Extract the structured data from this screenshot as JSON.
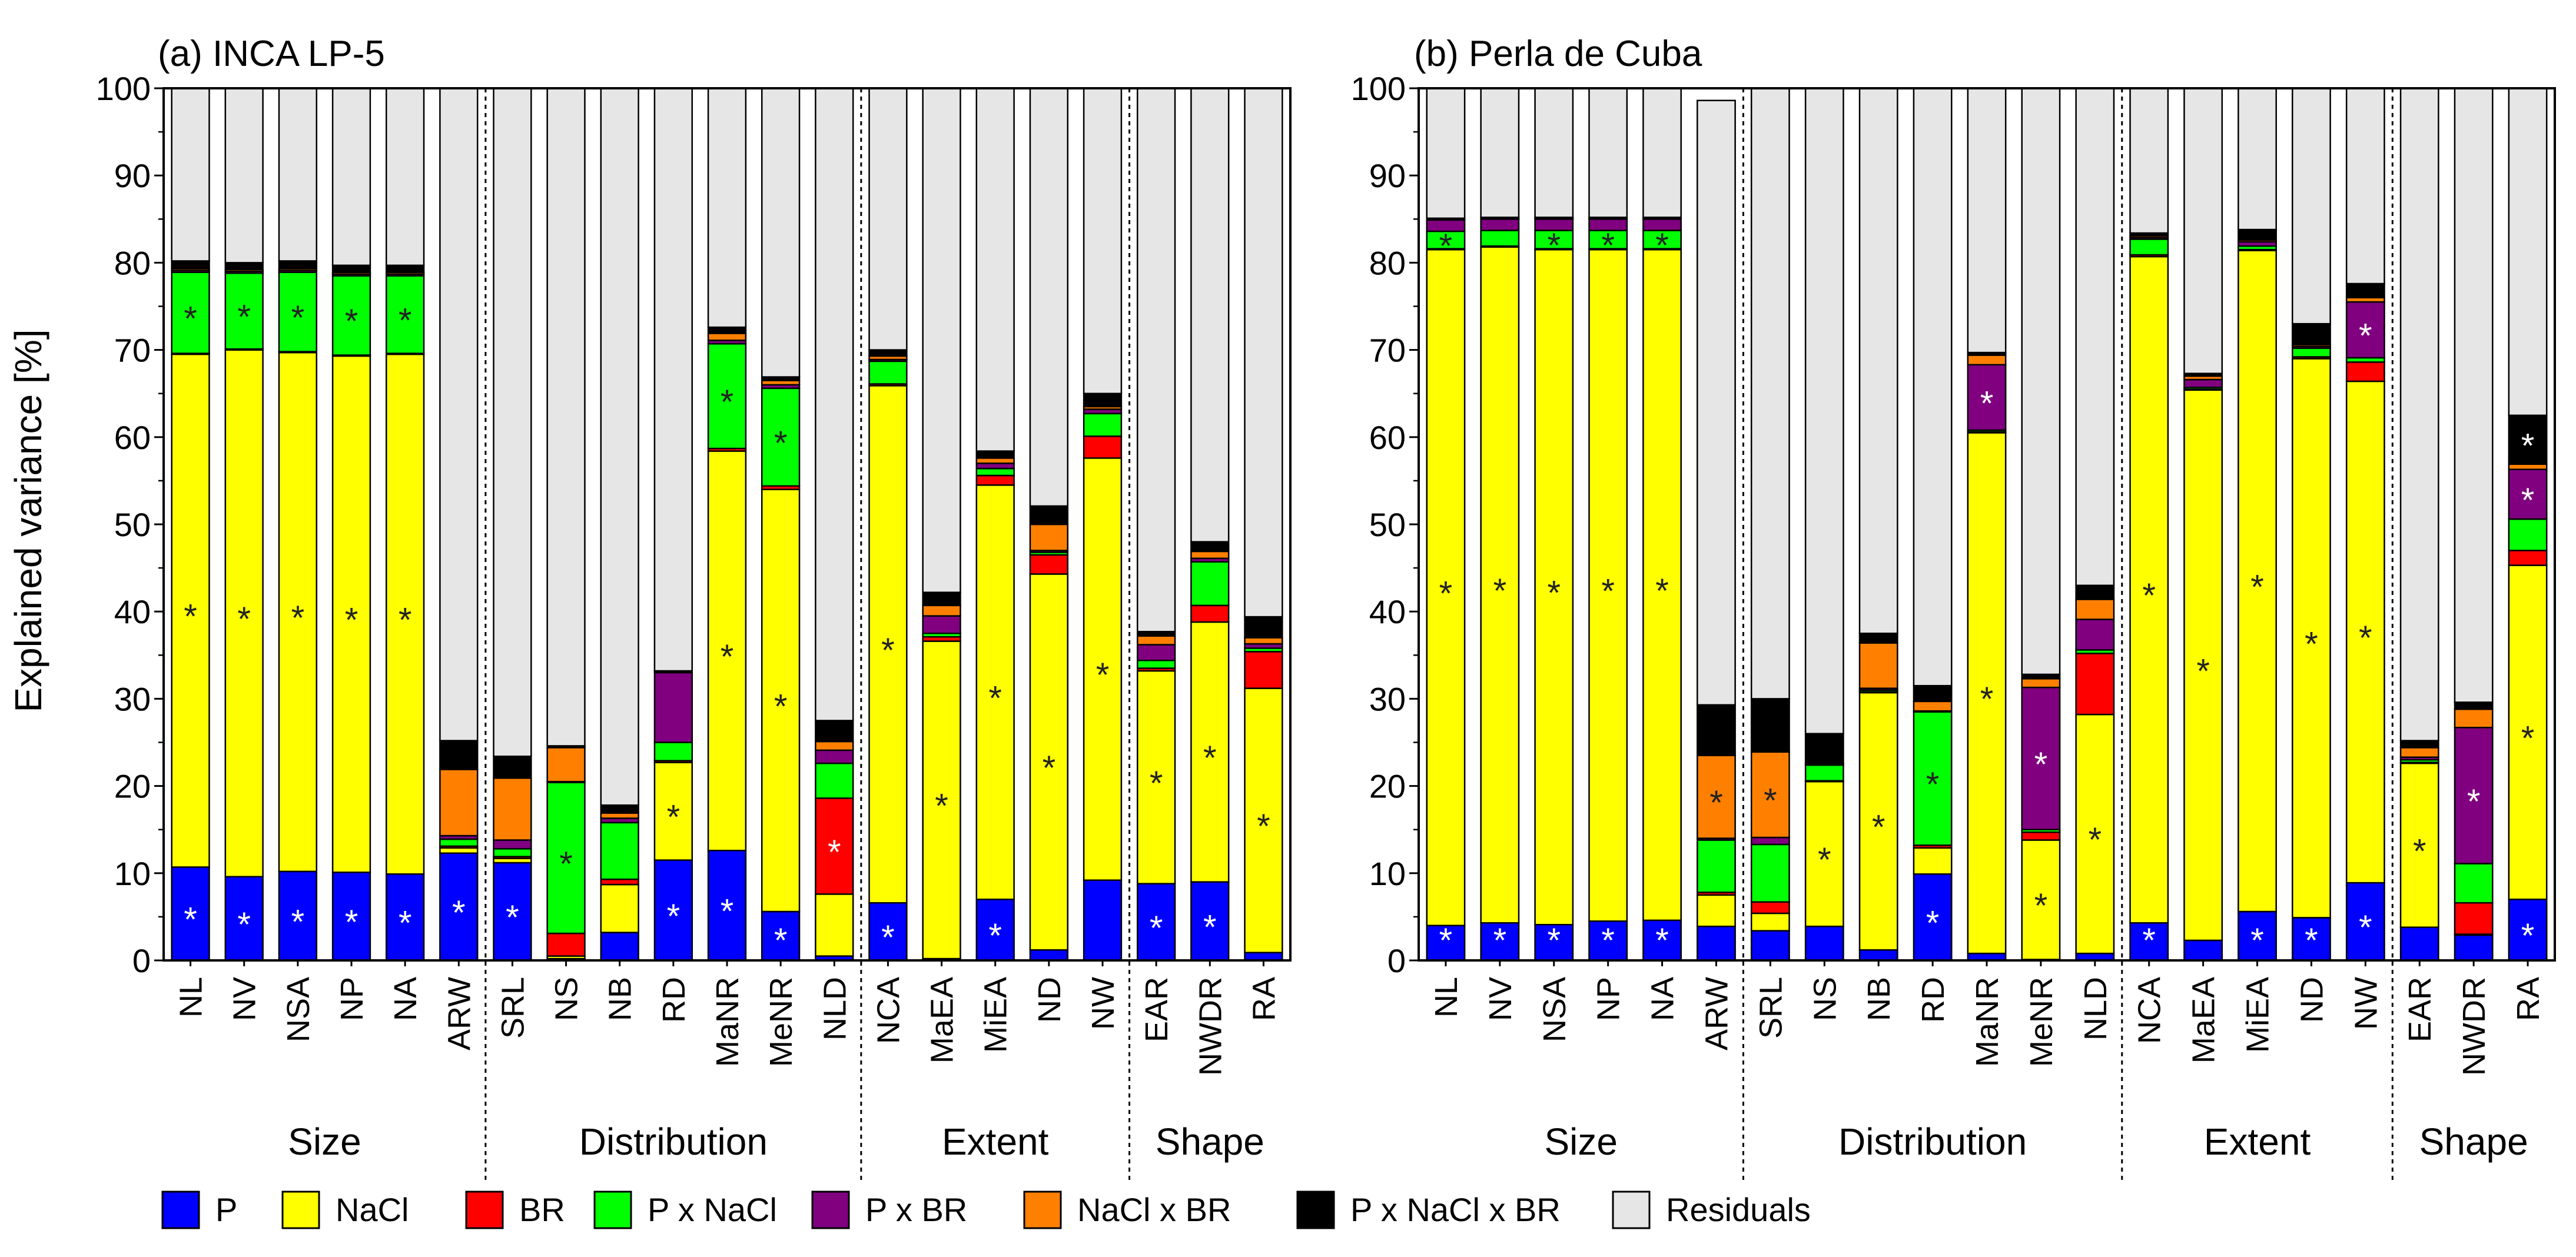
{
  "colors": {
    "P": "#0000ff",
    "NaCl": "#ffff00",
    "BR": "#ff0000",
    "PxNaCl": "#00ff00",
    "PxBR": "#800080",
    "NaClxBR": "#ff8000",
    "PxNaClxBR": "#000000",
    "Residuals": "#e6e6e6"
  },
  "y_axis_label": "Explained variance [%]",
  "legend": [
    {
      "key": "P",
      "label": "P"
    },
    {
      "key": "NaCl",
      "label": "NaCl"
    },
    {
      "key": "BR",
      "label": "BR"
    },
    {
      "key": "PxNaCl",
      "label": "P x NaCl"
    },
    {
      "key": "PxBR",
      "label": "P x BR"
    },
    {
      "key": "NaClxBR",
      "label": "NaCl x BR"
    },
    {
      "key": "PxNaClxBR",
      "label": "P x NaCl x BR"
    },
    {
      "key": "Residuals",
      "label": "Residuals"
    }
  ],
  "chart_data": [
    {
      "type": "bar",
      "stacked": true,
      "title": "(a) INCA LP-5",
      "ylabel": "Explained variance [%]",
      "ylim": [
        0,
        100
      ],
      "yticks": [
        0,
        10,
        20,
        30,
        40,
        50,
        60,
        70,
        80,
        90,
        100
      ],
      "series_order": [
        "P",
        "NaCl",
        "BR",
        "PxNaCl",
        "PxBR",
        "NaClxBR",
        "PxNaClxBR",
        "Residuals"
      ],
      "groups": [
        {
          "label": "Size",
          "categories": [
            "NL",
            "NV",
            "NSA",
            "NP",
            "NA",
            "ARW"
          ]
        },
        {
          "label": "Distribution",
          "categories": [
            "SRL",
            "NS",
            "NB",
            "RD",
            "MaNR",
            "MeNR",
            "NLD"
          ]
        },
        {
          "label": "Extent",
          "categories": [
            "NCA",
            "MaEA",
            "MiEA",
            "ND",
            "NW"
          ]
        },
        {
          "label": "Shape",
          "categories": [
            "EAR",
            "NWDR",
            "RA"
          ]
        }
      ],
      "bars": [
        {
          "cat": "NL",
          "P": 10.7,
          "NaCl": 58.8,
          "BR": 0.1,
          "PxNaCl": 9.3,
          "PxBR": 0.2,
          "NaClxBR": 0.2,
          "PxNaClxBR": 0.9,
          "Residuals": 19.8,
          "sig": [
            "P",
            "NaCl",
            "PxNaCl"
          ]
        },
        {
          "cat": "NV",
          "P": 9.6,
          "NaCl": 60.4,
          "BR": 0.1,
          "PxNaCl": 8.7,
          "PxBR": 0.2,
          "NaClxBR": 0.2,
          "PxNaClxBR": 0.8,
          "Residuals": 20.0,
          "sig": [
            "P",
            "NaCl",
            "PxNaCl"
          ]
        },
        {
          "cat": "NSA",
          "P": 10.2,
          "NaCl": 59.5,
          "BR": 0.1,
          "PxNaCl": 9.1,
          "PxBR": 0.2,
          "NaClxBR": 0.2,
          "PxNaClxBR": 0.9,
          "Residuals": 19.8,
          "sig": [
            "P",
            "NaCl",
            "PxNaCl"
          ]
        },
        {
          "cat": "NP",
          "P": 10.1,
          "NaCl": 59.2,
          "BR": 0.1,
          "PxNaCl": 9.1,
          "PxBR": 0.2,
          "NaClxBR": 0.2,
          "PxNaClxBR": 0.8,
          "Residuals": 20.3,
          "sig": [
            "P",
            "NaCl",
            "PxNaCl"
          ]
        },
        {
          "cat": "NA",
          "P": 9.9,
          "NaCl": 59.6,
          "BR": 0.1,
          "PxNaCl": 8.9,
          "PxBR": 0.2,
          "NaClxBR": 0.2,
          "PxNaClxBR": 0.8,
          "Residuals": 20.3,
          "sig": [
            "P",
            "NaCl",
            "PxNaCl"
          ]
        },
        {
          "cat": "ARW",
          "P": 12.3,
          "NaCl": 0.6,
          "BR": 0.2,
          "PxNaCl": 0.8,
          "PxBR": 0.4,
          "NaClxBR": 7.6,
          "PxNaClxBR": 3.3,
          "Residuals": 74.8,
          "sig": [
            "P"
          ]
        },
        {
          "cat": "SRL",
          "P": 11.2,
          "NaCl": 0.5,
          "BR": 0.2,
          "PxNaCl": 0.9,
          "PxBR": 1.0,
          "NaClxBR": 7.1,
          "PxNaClxBR": 2.5,
          "Residuals": 76.6,
          "sig": [
            "P"
          ]
        },
        {
          "cat": "NS",
          "P": 0.2,
          "NaCl": 0.3,
          "BR": 2.6,
          "PxNaCl": 17.3,
          "PxBR": 0.1,
          "NaClxBR": 3.9,
          "PxNaClxBR": 0.2,
          "Residuals": 75.4,
          "sig": [
            "PxNaCl"
          ]
        },
        {
          "cat": "NB",
          "P": 3.2,
          "NaCl": 5.5,
          "BR": 0.6,
          "PxNaCl": 6.5,
          "PxBR": 0.5,
          "NaClxBR": 0.6,
          "PxNaClxBR": 0.9,
          "Residuals": 82.2,
          "sig": []
        },
        {
          "cat": "RD",
          "P": 11.5,
          "NaCl": 11.2,
          "BR": 0.2,
          "PxNaCl": 2.1,
          "PxBR": 8.0,
          "NaClxBR": 0.1,
          "PxNaClxBR": 0.1,
          "Residuals": 66.8,
          "sig": [
            "P",
            "NaCl"
          ]
        },
        {
          "cat": "MaNR",
          "P": 12.6,
          "NaCl": 45.8,
          "BR": 0.3,
          "PxNaCl": 12.0,
          "PxBR": 0.4,
          "NaClxBR": 0.8,
          "PxNaClxBR": 0.7,
          "Residuals": 27.4,
          "sig": [
            "P",
            "NaCl",
            "PxNaCl"
          ]
        },
        {
          "cat": "MeNR",
          "P": 5.6,
          "NaCl": 48.4,
          "BR": 0.4,
          "PxNaCl": 11.2,
          "PxBR": 0.4,
          "NaClxBR": 0.5,
          "PxNaClxBR": 0.4,
          "Residuals": 33.1,
          "sig": [
            "P",
            "NaCl",
            "PxNaCl"
          ]
        },
        {
          "cat": "NLD",
          "P": 0.5,
          "NaCl": 7.1,
          "BR": 11.0,
          "PxNaCl": 4.0,
          "PxBR": 1.5,
          "NaClxBR": 1.0,
          "PxNaClxBR": 2.4,
          "Residuals": 72.5,
          "sig": [
            "BR"
          ]
        },
        {
          "cat": "NCA",
          "P": 6.6,
          "NaCl": 59.3,
          "BR": 0.2,
          "PxNaCl": 2.6,
          "PxBR": 0.2,
          "NaClxBR": 0.4,
          "PxNaClxBR": 0.7,
          "Residuals": 30.0,
          "sig": [
            "P",
            "NaCl"
          ]
        },
        {
          "cat": "MaEA",
          "P": 0.2,
          "NaCl": 36.4,
          "BR": 0.5,
          "PxNaCl": 0.4,
          "PxBR": 2.0,
          "NaClxBR": 1.2,
          "PxNaClxBR": 1.5,
          "Residuals": 57.8,
          "sig": [
            "NaCl"
          ]
        },
        {
          "cat": "MiEA",
          "P": 7.0,
          "NaCl": 47.5,
          "BR": 1.1,
          "PxNaCl": 0.8,
          "PxBR": 0.6,
          "NaClxBR": 0.6,
          "PxNaClxBR": 0.8,
          "Residuals": 41.6,
          "sig": [
            "P",
            "NaCl"
          ]
        },
        {
          "cat": "ND",
          "P": 1.2,
          "NaCl": 43.1,
          "BR": 2.2,
          "PxNaCl": 0.3,
          "PxBR": 0.2,
          "NaClxBR": 3.0,
          "PxNaClxBR": 2.1,
          "Residuals": 47.9,
          "sig": [
            "NaCl"
          ]
        },
        {
          "cat": "NW",
          "P": 9.2,
          "NaCl": 48.4,
          "BR": 2.5,
          "PxNaCl": 2.6,
          "PxBR": 0.5,
          "NaClxBR": 0.3,
          "PxNaClxBR": 1.5,
          "Residuals": 35.0,
          "sig": [
            "NaCl"
          ]
        },
        {
          "cat": "EAR",
          "P": 8.8,
          "NaCl": 24.4,
          "BR": 0.3,
          "PxNaCl": 0.9,
          "PxBR": 1.8,
          "NaClxBR": 1.0,
          "PxNaClxBR": 0.5,
          "Residuals": 62.3,
          "sig": [
            "P",
            "NaCl"
          ]
        },
        {
          "cat": "NWDR",
          "P": 9.0,
          "NaCl": 29.8,
          "BR": 1.9,
          "PxNaCl": 5.0,
          "PxBR": 0.4,
          "NaClxBR": 0.8,
          "PxNaClxBR": 1.1,
          "Residuals": 52.0,
          "sig": [
            "P",
            "NaCl"
          ]
        },
        {
          "cat": "RA",
          "P": 0.9,
          "NaCl": 30.3,
          "BR": 4.2,
          "PxNaCl": 0.4,
          "PxBR": 0.5,
          "NaClxBR": 0.7,
          "PxNaClxBR": 2.4,
          "Residuals": 60.6,
          "sig": [
            "NaCl"
          ]
        }
      ]
    },
    {
      "type": "bar",
      "stacked": true,
      "title": "(b) Perla de Cuba",
      "ylabel": "Explained variance [%]",
      "ylim": [
        0,
        100
      ],
      "yticks": [
        0,
        10,
        20,
        30,
        40,
        50,
        60,
        70,
        80,
        90,
        100
      ],
      "series_order": [
        "P",
        "NaCl",
        "BR",
        "PxNaCl",
        "PxBR",
        "NaClxBR",
        "PxNaClxBR",
        "Residuals"
      ],
      "groups": [
        {
          "label": "Size",
          "categories": [
            "NL",
            "NV",
            "NSA",
            "NP",
            "NA",
            "ARW"
          ]
        },
        {
          "label": "Distribution",
          "categories": [
            "SRL",
            "NS",
            "NB",
            "RD",
            "MaNR",
            "MeNR",
            "NLD"
          ]
        },
        {
          "label": "Extent",
          "categories": [
            "NCA",
            "MaEA",
            "MiEA",
            "ND",
            "NW"
          ]
        },
        {
          "label": "Shape",
          "categories": [
            "EAR",
            "NWDR",
            "RA"
          ]
        }
      ],
      "bars": [
        {
          "cat": "NL",
          "P": 4.0,
          "NaCl": 77.5,
          "BR": 0.1,
          "PxNaCl": 2.0,
          "PxBR": 1.3,
          "NaClxBR": 0.1,
          "PxNaClxBR": 0.1,
          "Residuals": 14.9,
          "sig": [
            "P",
            "NaCl",
            "PxNaCl"
          ]
        },
        {
          "cat": "NV",
          "P": 4.3,
          "NaCl": 77.5,
          "BR": 0.1,
          "PxNaCl": 1.8,
          "PxBR": 1.3,
          "NaClxBR": 0.1,
          "PxNaClxBR": 0.1,
          "Residuals": 14.8,
          "sig": [
            "P",
            "NaCl"
          ]
        },
        {
          "cat": "NSA",
          "P": 4.1,
          "NaCl": 77.4,
          "BR": 0.1,
          "PxNaCl": 2.1,
          "PxBR": 1.3,
          "NaClxBR": 0.1,
          "PxNaClxBR": 0.1,
          "Residuals": 14.8,
          "sig": [
            "P",
            "NaCl",
            "PxNaCl"
          ]
        },
        {
          "cat": "NP",
          "P": 4.5,
          "NaCl": 77.0,
          "BR": 0.1,
          "PxNaCl": 2.1,
          "PxBR": 1.3,
          "NaClxBR": 0.1,
          "PxNaClxBR": 0.1,
          "Residuals": 14.8,
          "sig": [
            "P",
            "NaCl",
            "PxNaCl"
          ]
        },
        {
          "cat": "NA",
          "P": 4.6,
          "NaCl": 76.9,
          "BR": 0.1,
          "PxNaCl": 2.1,
          "PxBR": 1.3,
          "NaClxBR": 0.1,
          "PxNaClxBR": 0.1,
          "Residuals": 14.8,
          "sig": [
            "P",
            "NaCl",
            "PxNaCl"
          ]
        },
        {
          "cat": "ARW",
          "P": 3.9,
          "NaCl": 3.6,
          "BR": 0.3,
          "PxNaCl": 6.0,
          "PxBR": 0.2,
          "NaClxBR": 9.5,
          "PxNaClxBR": 5.8,
          "Residuals": 69.3,
          "sig": [
            "NaClxBR"
          ]
        },
        {
          "cat": "SRL",
          "P": 3.4,
          "NaCl": 2.0,
          "BR": 1.3,
          "PxNaCl": 6.6,
          "PxBR": 0.8,
          "NaClxBR": 9.8,
          "PxNaClxBR": 6.1,
          "Residuals": 70.0,
          "sig": [
            "NaClxBR"
          ]
        },
        {
          "cat": "NS",
          "P": 3.9,
          "NaCl": 16.6,
          "BR": 0.1,
          "PxNaCl": 1.8,
          "PxBR": 0.1,
          "NaClxBR": 0.1,
          "PxNaClxBR": 3.4,
          "Residuals": 74.0,
          "sig": [
            "NaCl"
          ]
        },
        {
          "cat": "NB",
          "P": 1.2,
          "NaCl": 29.5,
          "BR": 0.1,
          "PxNaCl": 0.2,
          "PxBR": 0.2,
          "NaClxBR": 5.2,
          "PxNaClxBR": 1.1,
          "Residuals": 62.5,
          "sig": [
            "NaCl"
          ]
        },
        {
          "cat": "RD",
          "P": 9.9,
          "NaCl": 3.0,
          "BR": 0.3,
          "PxNaCl": 15.3,
          "PxBR": 0.1,
          "NaClxBR": 1.1,
          "PxNaClxBR": 1.8,
          "Residuals": 68.5,
          "sig": [
            "P",
            "PxNaCl"
          ]
        },
        {
          "cat": "MaNR",
          "P": 0.8,
          "NaCl": 59.7,
          "BR": 0.1,
          "PxNaCl": 0.2,
          "PxBR": 7.5,
          "NaClxBR": 1.1,
          "PxNaClxBR": 0.3,
          "Residuals": 30.3,
          "sig": [
            "NaCl",
            "PxBR"
          ]
        },
        {
          "cat": "MeNR",
          "P": 0.1,
          "NaCl": 13.7,
          "BR": 0.9,
          "PxNaCl": 0.3,
          "PxBR": 16.3,
          "NaClxBR": 1.0,
          "PxNaClxBR": 0.5,
          "Residuals": 67.2,
          "sig": [
            "NaCl",
            "PxBR"
          ]
        },
        {
          "cat": "NLD",
          "P": 0.8,
          "NaCl": 27.4,
          "BR": 7.0,
          "PxNaCl": 0.4,
          "PxBR": 3.5,
          "NaClxBR": 2.3,
          "PxNaClxBR": 1.6,
          "Residuals": 57.0,
          "sig": [
            "NaCl"
          ]
        },
        {
          "cat": "NCA",
          "P": 4.3,
          "NaCl": 76.4,
          "BR": 0.2,
          "PxNaCl": 1.8,
          "PxBR": 0.2,
          "NaClxBR": 0.2,
          "PxNaClxBR": 0.3,
          "Residuals": 16.6,
          "sig": [
            "P",
            "NaCl"
          ]
        },
        {
          "cat": "MaEA",
          "P": 2.3,
          "NaCl": 63.1,
          "BR": 0.1,
          "PxNaCl": 0.2,
          "PxBR": 0.9,
          "NaClxBR": 0.4,
          "PxNaClxBR": 0.3,
          "Residuals": 32.7,
          "sig": [
            "NaCl"
          ]
        },
        {
          "cat": "MiEA",
          "P": 5.6,
          "NaCl": 75.8,
          "BR": 0.1,
          "PxNaCl": 0.4,
          "PxBR": 0.5,
          "NaClxBR": 0.2,
          "PxNaClxBR": 1.2,
          "Residuals": 16.2,
          "sig": [
            "P",
            "NaCl"
          ]
        },
        {
          "cat": "ND",
          "P": 4.9,
          "NaCl": 64.1,
          "BR": 0.2,
          "PxNaCl": 1.0,
          "PxBR": 0.2,
          "NaClxBR": 0.2,
          "PxNaClxBR": 2.4,
          "Residuals": 27.0,
          "sig": [
            "P",
            "NaCl"
          ]
        },
        {
          "cat": "NW",
          "P": 8.9,
          "NaCl": 57.5,
          "BR": 2.2,
          "PxNaCl": 0.5,
          "PxBR": 6.4,
          "NaClxBR": 0.5,
          "PxNaClxBR": 1.6,
          "Residuals": 22.4,
          "sig": [
            "P",
            "NaCl",
            "PxBR"
          ]
        },
        {
          "cat": "EAR",
          "P": 3.8,
          "NaCl": 18.8,
          "BR": 0.1,
          "PxNaCl": 0.3,
          "PxBR": 0.3,
          "NaClxBR": 1.1,
          "PxNaClxBR": 0.8,
          "Residuals": 74.8,
          "sig": [
            "NaCl"
          ]
        },
        {
          "cat": "NWDR",
          "P": 2.9,
          "NaCl": 0.1,
          "BR": 3.6,
          "PxNaCl": 4.5,
          "PxBR": 15.6,
          "NaClxBR": 2.1,
          "PxNaClxBR": 0.8,
          "Residuals": 70.4,
          "sig": [
            "PxBR"
          ]
        },
        {
          "cat": "RA",
          "P": 7.0,
          "NaCl": 38.3,
          "BR": 1.7,
          "PxNaCl": 3.6,
          "PxBR": 5.7,
          "NaClxBR": 0.6,
          "PxNaClxBR": 5.6,
          "Residuals": 37.5,
          "sig": [
            "P",
            "NaCl",
            "PxBR",
            "PxNaClxBR"
          ]
        }
      ]
    }
  ]
}
